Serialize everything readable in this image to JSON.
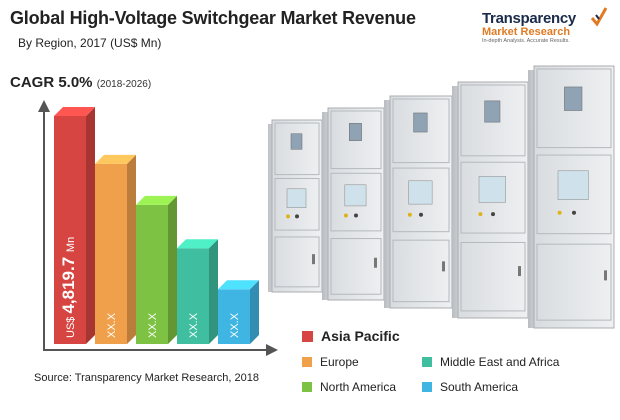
{
  "header": {
    "title": "Global High-Voltage Switchgear Market Revenue",
    "subtitle": "By Region, 2017 (US$ Mn)"
  },
  "logo": {
    "brand": "Transparency",
    "sub": "Market Research",
    "tagline": "In-depth Analysis. Accurate Results."
  },
  "cagr": {
    "label": "CAGR 5.0%",
    "range": "(2018-2026)"
  },
  "source": "Source: Transparency Market Research, 2018",
  "colors": {
    "asia_pacific": "#d64541",
    "europe": "#f0a04b",
    "north_america": "#7dc242",
    "middle_east_africa": "#3fbfa0",
    "south_america": "#3fb5e3"
  },
  "chart_data": {
    "type": "bar",
    "title": "Global High-Voltage Switchgear Market Revenue",
    "subtitle": "By Region, 2017 (US$ Mn)",
    "categories": [
      "Asia Pacific",
      "Europe",
      "North America",
      "Middle East and Africa",
      "South America"
    ],
    "values": [
      4819.7,
      null,
      null,
      null,
      null
    ],
    "data_labels": [
      "US$ 4,819.7 Mn",
      "XX.X",
      "XX.X",
      "XX.X",
      "XX.X"
    ],
    "relative_heights": [
      1.0,
      0.79,
      0.61,
      0.42,
      0.24
    ],
    "legend": [
      "Asia Pacific",
      "Europe",
      "Middle East and Africa",
      "North America",
      "South America"
    ],
    "legend_placement": "bottom-right",
    "grid": false
  }
}
